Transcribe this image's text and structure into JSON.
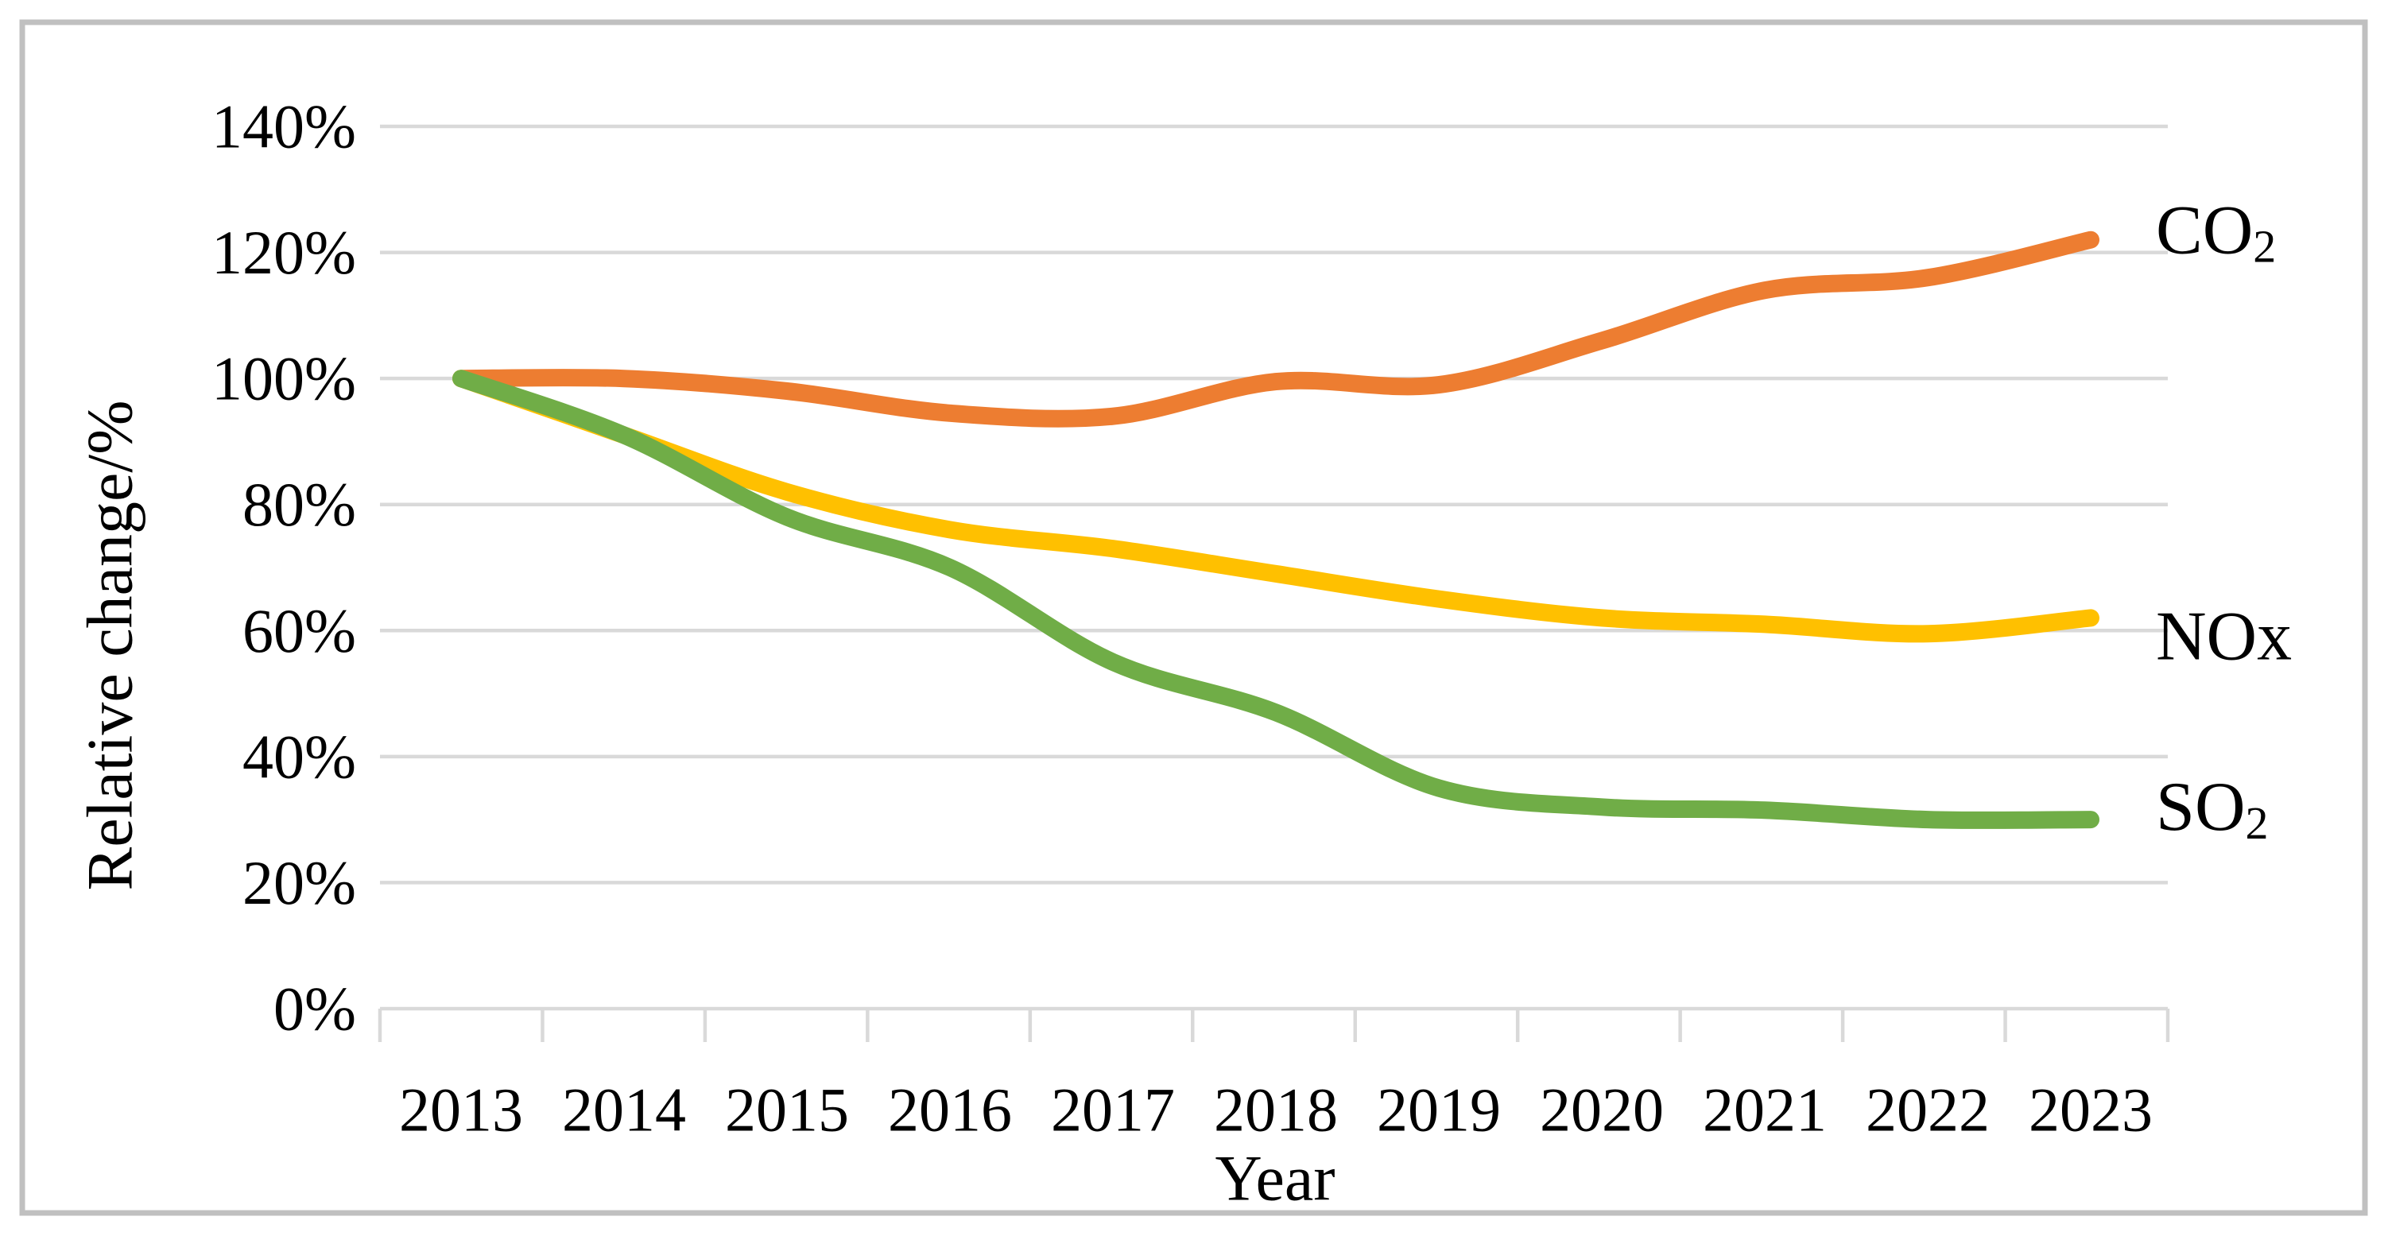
{
  "figure": {
    "background": "#FFFFFF",
    "border_color": "#C0C0C0"
  },
  "chart_data": {
    "type": "line",
    "title": "",
    "xlabel": "Year",
    "ylabel": "Relative change/%",
    "x": [
      2013,
      2014,
      2015,
      2016,
      2017,
      2018,
      2019,
      2020,
      2021,
      2022,
      2023
    ],
    "x_tick_labels": [
      "2013",
      "2014",
      "2015",
      "2016",
      "2017",
      "2018",
      "2019",
      "2020",
      "2021",
      "2022",
      "2023"
    ],
    "y_tick_labels": [
      "0%",
      "20%",
      "40%",
      "60%",
      "80%",
      "100%",
      "120%",
      "140%"
    ],
    "y_ticks": [
      0,
      20,
      40,
      60,
      80,
      100,
      120,
      140
    ],
    "ylim": [
      0,
      140
    ],
    "y_unit": "%",
    "grid": "horizontal",
    "gridline_color": "#D9D9D9",
    "axis_color": "#D9D9D9",
    "text_color": "#000000",
    "smoothed": true,
    "legend_position": "end-of-line-labels",
    "series": [
      {
        "name": "CO2",
        "label_main": "CO",
        "label_sub": "2",
        "color": "#ED7D31",
        "values": [
          100,
          100,
          98,
          94.5,
          94,
          99.5,
          99,
          106,
          114,
          116,
          122
        ]
      },
      {
        "name": "NOx",
        "label_main": "NOx",
        "label_sub": "",
        "color": "#FFC000",
        "values": [
          100,
          91,
          82,
          76,
          73,
          69,
          65,
          62,
          61,
          59.5,
          62
        ]
      },
      {
        "name": "SO2",
        "label_main": "SO",
        "label_sub": "2",
        "color": "#70AD47",
        "values": [
          100,
          91,
          78,
          70,
          55,
          47,
          35,
          32,
          31.5,
          30,
          30
        ]
      }
    ]
  }
}
